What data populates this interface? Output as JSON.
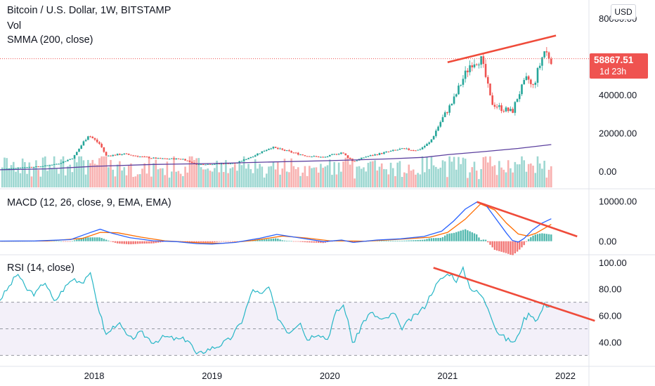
{
  "header": {
    "symbol_title": "Bitcoin / U.S. Dollar, 1W, BITSTAMP",
    "vol_label": "Vol",
    "smma_label": "SMMA (200, close)",
    "macd_label": "MACD (12, 26, close, 9, EMA, EMA)",
    "rsi_label": "RSI (14, close)",
    "currency_button": "USD"
  },
  "last_price": {
    "value": "58867.51",
    "countdown": "1d 23h",
    "color": "#ef5350"
  },
  "colors": {
    "up": "#26a69a",
    "down": "#ef5350",
    "smma": "#5b3f9e",
    "macd": "#2962ff",
    "signal": "#ff6d00",
    "rsi": "#26b6c6",
    "rsi_band": "#7e57c2",
    "trendline": "#ef4b3a"
  },
  "chart_data": {
    "type": "line",
    "x_axis": {
      "ticks": [
        "2018",
        "2019",
        "2020",
        "2021",
        "2022"
      ],
      "tick_dates": [
        2018.0,
        2019.0,
        2020.0,
        2021.0,
        2022.0
      ],
      "range": [
        2017.2,
        2022.2
      ]
    },
    "price_pane": {
      "title": "Bitcoin / U.S. Dollar, 1W, BITSTAMP",
      "y_ticks": [
        "80000.00",
        "60000.00",
        "40000.00",
        "20000.00",
        "0.00"
      ],
      "y_tick_values": [
        80000,
        60000,
        40000,
        20000,
        0
      ],
      "ylim": [
        -3000,
        83000
      ],
      "price_keypoints": [
        [
          2017.2,
          1000
        ],
        [
          2017.4,
          2000
        ],
        [
          2017.55,
          2500
        ],
        [
          2017.7,
          4000
        ],
        [
          2017.82,
          7000
        ],
        [
          2017.95,
          19000
        ],
        [
          2018.05,
          14000
        ],
        [
          2018.1,
          8000
        ],
        [
          2018.25,
          9000
        ],
        [
          2018.4,
          7500
        ],
        [
          2018.55,
          6500
        ],
        [
          2018.75,
          6400
        ],
        [
          2018.87,
          3500
        ],
        [
          2019.0,
          3700
        ],
        [
          2019.2,
          4100
        ],
        [
          2019.35,
          8000
        ],
        [
          2019.5,
          12500
        ],
        [
          2019.7,
          9500
        ],
        [
          2019.8,
          8000
        ],
        [
          2019.95,
          7200
        ],
        [
          2020.1,
          9800
        ],
        [
          2020.2,
          5000
        ],
        [
          2020.3,
          7500
        ],
        [
          2020.45,
          9500
        ],
        [
          2020.6,
          11500
        ],
        [
          2020.75,
          11000
        ],
        [
          2020.85,
          15000
        ],
        [
          2020.95,
          27000
        ],
        [
          2021.05,
          37000
        ],
        [
          2021.12,
          47000
        ],
        [
          2021.2,
          57000
        ],
        [
          2021.28,
          59000
        ],
        [
          2021.32,
          50000
        ],
        [
          2021.37,
          36000
        ],
        [
          2021.45,
          33000
        ],
        [
          2021.55,
          31000
        ],
        [
          2021.6,
          40000
        ],
        [
          2021.68,
          49000
        ],
        [
          2021.72,
          43000
        ],
        [
          2021.78,
          55000
        ],
        [
          2021.82,
          63000
        ],
        [
          2021.85,
          61000
        ],
        [
          2021.88,
          58867
        ]
      ],
      "smma": [
        [
          2017.2,
          700
        ],
        [
          2017.6,
          1200
        ],
        [
          2018.0,
          2500
        ],
        [
          2018.5,
          3500
        ],
        [
          2019.0,
          4000
        ],
        [
          2019.5,
          4800
        ],
        [
          2020.0,
          5500
        ],
        [
          2020.5,
          6400
        ],
        [
          2020.8,
          7200
        ],
        [
          2021.0,
          8600
        ],
        [
          2021.3,
          10200
        ],
        [
          2021.6,
          11900
        ],
        [
          2021.88,
          13900
        ]
      ],
      "last_price": 58867.51,
      "trendline": [
        [
          2021.0,
          57000
        ],
        [
          2021.92,
          71000
        ]
      ]
    },
    "volume_pane": {
      "name": "Vol"
    },
    "macd_pane": {
      "title": "MACD (12, 26, close, 9, EMA, EMA)",
      "y_ticks": [
        "10000.00",
        "0.00"
      ],
      "y_tick_values": [
        10000,
        0
      ],
      "ylim": [
        -2500,
        11500
      ],
      "macd": [
        [
          2017.2,
          30
        ],
        [
          2017.5,
          80
        ],
        [
          2017.8,
          400
        ],
        [
          2017.95,
          2000
        ],
        [
          2018.05,
          3000
        ],
        [
          2018.15,
          2000
        ],
        [
          2018.3,
          900
        ],
        [
          2018.5,
          100
        ],
        [
          2018.7,
          -100
        ],
        [
          2018.87,
          -600
        ],
        [
          2019.0,
          -700
        ],
        [
          2019.2,
          -300
        ],
        [
          2019.4,
          700
        ],
        [
          2019.55,
          1700
        ],
        [
          2019.75,
          800
        ],
        [
          2019.95,
          -100
        ],
        [
          2020.1,
          300
        ],
        [
          2020.2,
          -300
        ],
        [
          2020.4,
          300
        ],
        [
          2020.6,
          600
        ],
        [
          2020.8,
          1200
        ],
        [
          2020.95,
          2500
        ],
        [
          2021.05,
          5000
        ],
        [
          2021.15,
          8000
        ],
        [
          2021.25,
          9800
        ],
        [
          2021.32,
          9200
        ],
        [
          2021.4,
          6000
        ],
        [
          2021.5,
          2000
        ],
        [
          2021.55,
          200
        ],
        [
          2021.6,
          -200
        ],
        [
          2021.65,
          700
        ],
        [
          2021.72,
          2800
        ],
        [
          2021.8,
          4500
        ],
        [
          2021.88,
          5600
        ]
      ],
      "signal": [
        [
          2017.2,
          20
        ],
        [
          2017.6,
          60
        ],
        [
          2017.9,
          700
        ],
        [
          2018.05,
          2200
        ],
        [
          2018.2,
          2100
        ],
        [
          2018.4,
          1000
        ],
        [
          2018.6,
          100
        ],
        [
          2018.9,
          -400
        ],
        [
          2019.1,
          -500
        ],
        [
          2019.35,
          200
        ],
        [
          2019.6,
          1300
        ],
        [
          2019.8,
          800
        ],
        [
          2020.0,
          100
        ],
        [
          2020.3,
          0
        ],
        [
          2020.6,
          500
        ],
        [
          2020.85,
          1000
        ],
        [
          2021.0,
          2200
        ],
        [
          2021.15,
          5500
        ],
        [
          2021.28,
          9300
        ],
        [
          2021.4,
          7800
        ],
        [
          2021.5,
          4500
        ],
        [
          2021.6,
          1800
        ],
        [
          2021.68,
          1300
        ],
        [
          2021.75,
          2000
        ],
        [
          2021.88,
          4200
        ]
      ],
      "trendline": [
        [
          2021.25,
          9800
        ],
        [
          2022.1,
          1200
        ]
      ]
    },
    "rsi_pane": {
      "title": "RSI (14, close)",
      "y_ticks": [
        "100.00",
        "80.00",
        "60.00",
        "40.00"
      ],
      "y_tick_values": [
        100,
        80,
        60,
        40
      ],
      "ylim": [
        27,
        101
      ],
      "band": [
        30,
        70
      ],
      "midline": 50,
      "rsi": [
        [
          2017.2,
          72
        ],
        [
          2017.28,
          82
        ],
        [
          2017.35,
          92
        ],
        [
          2017.42,
          80
        ],
        [
          2017.5,
          76
        ],
        [
          2017.58,
          86
        ],
        [
          2017.66,
          70
        ],
        [
          2017.74,
          80
        ],
        [
          2017.82,
          88
        ],
        [
          2017.9,
          85
        ],
        [
          2017.96,
          93
        ],
        [
          2018.03,
          68
        ],
        [
          2018.1,
          45
        ],
        [
          2018.2,
          55
        ],
        [
          2018.3,
          42
        ],
        [
          2018.4,
          47
        ],
        [
          2018.5,
          40
        ],
        [
          2018.6,
          44
        ],
        [
          2018.7,
          42
        ],
        [
          2018.8,
          42
        ],
        [
          2018.87,
          30
        ],
        [
          2018.95,
          34
        ],
        [
          2019.05,
          37
        ],
        [
          2019.15,
          42
        ],
        [
          2019.25,
          55
        ],
        [
          2019.3,
          68
        ],
        [
          2019.35,
          80
        ],
        [
          2019.42,
          75
        ],
        [
          2019.48,
          82
        ],
        [
          2019.55,
          60
        ],
        [
          2019.65,
          47
        ],
        [
          2019.75,
          56
        ],
        [
          2019.8,
          42
        ],
        [
          2019.9,
          47
        ],
        [
          2019.98,
          42
        ],
        [
          2020.05,
          62
        ],
        [
          2020.12,
          68
        ],
        [
          2020.2,
          38
        ],
        [
          2020.28,
          55
        ],
        [
          2020.35,
          62
        ],
        [
          2020.45,
          56
        ],
        [
          2020.55,
          62
        ],
        [
          2020.6,
          50
        ],
        [
          2020.7,
          58
        ],
        [
          2020.8,
          66
        ],
        [
          2020.88,
          80
        ],
        [
          2020.95,
          88
        ],
        [
          2021.02,
          92
        ],
        [
          2021.08,
          86
        ],
        [
          2021.13,
          95
        ],
        [
          2021.2,
          80
        ],
        [
          2021.28,
          76
        ],
        [
          2021.35,
          65
        ],
        [
          2021.42,
          48
        ],
        [
          2021.5,
          42
        ],
        [
          2021.58,
          40
        ],
        [
          2021.64,
          56
        ],
        [
          2021.7,
          62
        ],
        [
          2021.76,
          56
        ],
        [
          2021.82,
          68
        ],
        [
          2021.88,
          68
        ]
      ],
      "trendline": [
        [
          2020.88,
          96
        ],
        [
          2022.25,
          56
        ]
      ]
    }
  }
}
